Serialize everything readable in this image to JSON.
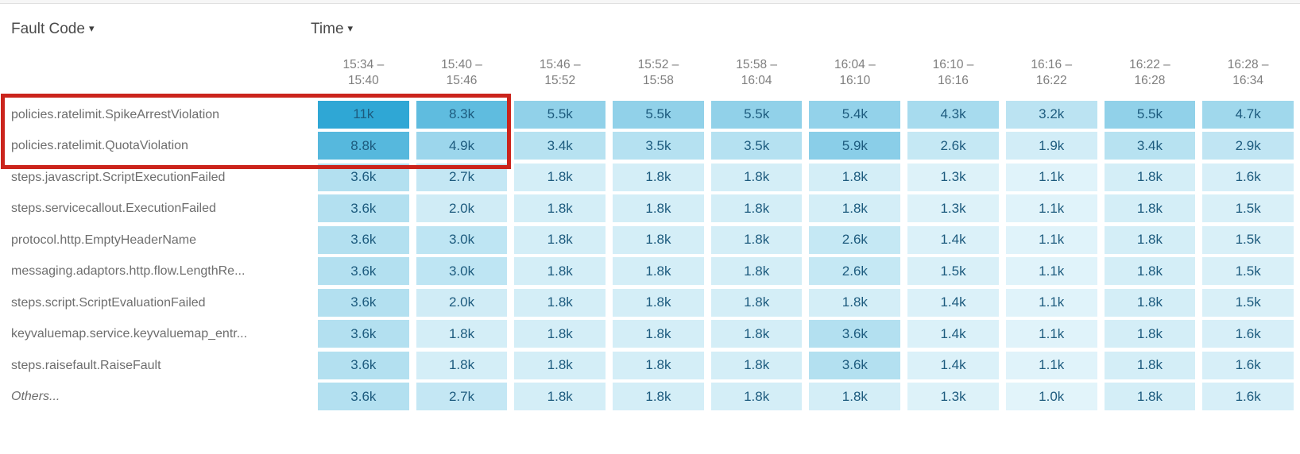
{
  "controls": {
    "fault_code": {
      "label": "Fault Code",
      "dropdown_icon": "▾"
    },
    "time": {
      "label": "Time",
      "dropdown_icon": "▾"
    }
  },
  "table": {
    "columns": [
      "15:34 – 15:40",
      "15:40 – 15:46",
      "15:46 – 15:52",
      "15:52 – 15:58",
      "15:58 – 16:04",
      "16:04 – 16:10",
      "16:10 – 16:16",
      "16:16 – 16:22",
      "16:22 – 16:28",
      "16:28 – 16:34"
    ],
    "rows": [
      {
        "label": "policies.ratelimit.SpikeArrestViolation",
        "italic": false,
        "values": [
          "11k",
          "8.3k",
          "5.5k",
          "5.5k",
          "5.5k",
          "5.4k",
          "4.3k",
          "3.2k",
          "5.5k",
          "4.7k"
        ]
      },
      {
        "label": "policies.ratelimit.QuotaViolation",
        "italic": false,
        "values": [
          "8.8k",
          "4.9k",
          "3.4k",
          "3.5k",
          "3.5k",
          "5.9k",
          "2.6k",
          "1.9k",
          "3.4k",
          "2.9k"
        ]
      },
      {
        "label": "steps.javascript.ScriptExecutionFailed",
        "italic": false,
        "values": [
          "3.6k",
          "2.7k",
          "1.8k",
          "1.8k",
          "1.8k",
          "1.8k",
          "1.3k",
          "1.1k",
          "1.8k",
          "1.6k"
        ]
      },
      {
        "label": "steps.servicecallout.ExecutionFailed",
        "italic": false,
        "values": [
          "3.6k",
          "2.0k",
          "1.8k",
          "1.8k",
          "1.8k",
          "1.8k",
          "1.3k",
          "1.1k",
          "1.8k",
          "1.5k"
        ]
      },
      {
        "label": "protocol.http.EmptyHeaderName",
        "italic": false,
        "values": [
          "3.6k",
          "3.0k",
          "1.8k",
          "1.8k",
          "1.8k",
          "2.6k",
          "1.4k",
          "1.1k",
          "1.8k",
          "1.5k"
        ]
      },
      {
        "label": "messaging.adaptors.http.flow.LengthRe...",
        "italic": false,
        "values": [
          "3.6k",
          "3.0k",
          "1.8k",
          "1.8k",
          "1.8k",
          "2.6k",
          "1.5k",
          "1.1k",
          "1.8k",
          "1.5k"
        ]
      },
      {
        "label": "steps.script.ScriptEvaluationFailed",
        "italic": false,
        "values": [
          "3.6k",
          "2.0k",
          "1.8k",
          "1.8k",
          "1.8k",
          "1.8k",
          "1.4k",
          "1.1k",
          "1.8k",
          "1.5k"
        ]
      },
      {
        "label": "keyvaluemap.service.keyvaluemap_entr...",
        "italic": false,
        "values": [
          "3.6k",
          "1.8k",
          "1.8k",
          "1.8k",
          "1.8k",
          "3.6k",
          "1.4k",
          "1.1k",
          "1.8k",
          "1.6k"
        ]
      },
      {
        "label": "steps.raisefault.RaiseFault",
        "italic": false,
        "values": [
          "3.6k",
          "1.8k",
          "1.8k",
          "1.8k",
          "1.8k",
          "3.6k",
          "1.4k",
          "1.1k",
          "1.8k",
          "1.6k"
        ]
      },
      {
        "label": "Others...",
        "italic": true,
        "values": [
          "3.6k",
          "2.7k",
          "1.8k",
          "1.8k",
          "1.8k",
          "1.8k",
          "1.3k",
          "1.0k",
          "1.8k",
          "1.6k"
        ]
      }
    ]
  },
  "heatmap_style": {
    "min_value": 1.0,
    "max_value": 11.0,
    "min_value_color": "#e2f4fa",
    "max_value_color": "#2fa7d5",
    "cell_text_color": "#1d5b7e"
  },
  "annotation": {
    "highlight_border_color": "#cb241c",
    "highlighted_rows": [
      "policies.ratelimit.SpikeArrestViolation",
      "policies.ratelimit.QuotaViolation"
    ],
    "highlighted_columns": [
      "15:34 – 15:40",
      "15:40 – 15:46"
    ]
  },
  "chart_data": {
    "type": "heatmap",
    "xlabel": "Time",
    "ylabel": "Fault Code",
    "x_categories": [
      "15:34 – 15:40",
      "15:40 – 15:46",
      "15:46 – 15:52",
      "15:52 – 15:58",
      "15:58 – 16:04",
      "16:04 – 16:10",
      "16:10 – 16:16",
      "16:16 – 16:22",
      "16:22 – 16:28",
      "16:28 – 16:34"
    ],
    "y_categories": [
      "policies.ratelimit.SpikeArrestViolation",
      "policies.ratelimit.QuotaViolation",
      "steps.javascript.ScriptExecutionFailed",
      "steps.servicecallout.ExecutionFailed",
      "protocol.http.EmptyHeaderName",
      "messaging.adaptors.http.flow.LengthRe...",
      "steps.script.ScriptEvaluationFailed",
      "keyvaluemap.service.keyvaluemap_entr...",
      "steps.raisefault.RaiseFault",
      "Others..."
    ],
    "values": [
      [
        11000,
        8300,
        5500,
        5500,
        5500,
        5400,
        4300,
        3200,
        5500,
        4700
      ],
      [
        8800,
        4900,
        3400,
        3500,
        3500,
        5900,
        2600,
        1900,
        3400,
        2900
      ],
      [
        3600,
        2700,
        1800,
        1800,
        1800,
        1800,
        1300,
        1100,
        1800,
        1600
      ],
      [
        3600,
        2000,
        1800,
        1800,
        1800,
        1800,
        1300,
        1100,
        1800,
        1500
      ],
      [
        3600,
        3000,
        1800,
        1800,
        1800,
        2600,
        1400,
        1100,
        1800,
        1500
      ],
      [
        3600,
        3000,
        1800,
        1800,
        1800,
        2600,
        1500,
        1100,
        1800,
        1500
      ],
      [
        3600,
        2000,
        1800,
        1800,
        1800,
        1800,
        1400,
        1100,
        1800,
        1500
      ],
      [
        3600,
        1800,
        1800,
        1800,
        1800,
        3600,
        1400,
        1100,
        1800,
        1600
      ],
      [
        3600,
        1800,
        1800,
        1800,
        1800,
        3600,
        1400,
        1100,
        1800,
        1600
      ],
      [
        3600,
        2700,
        1800,
        1800,
        1800,
        1800,
        1300,
        1000,
        1800,
        1600
      ]
    ],
    "color_range": [
      "#e2f4fa",
      "#2fa7d5"
    ],
    "legend": "none"
  }
}
